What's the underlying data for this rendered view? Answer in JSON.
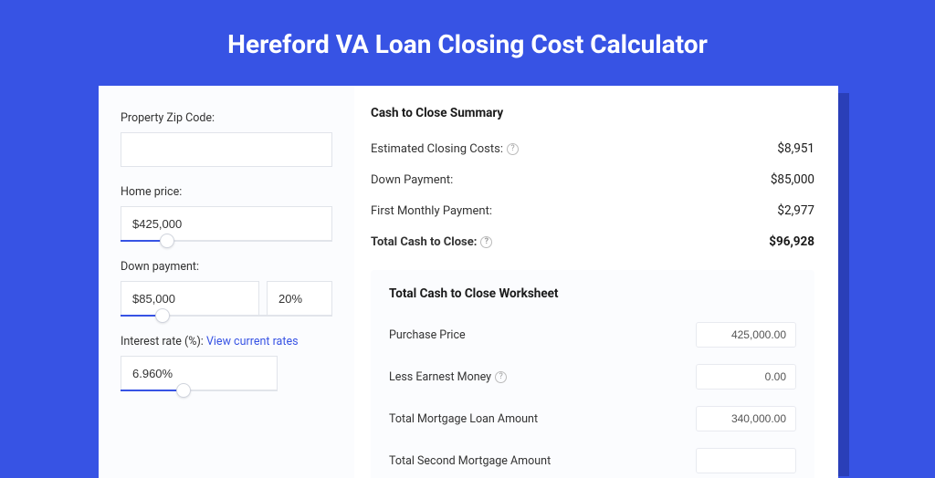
{
  "colors": {
    "page_bg": "#3753e4",
    "card_bg": "#ffffff",
    "panel_bg": "#fbfcfe",
    "shadow_bg": "#2a3fb8",
    "border": "#e1e4ea",
    "slider_fill": "#3753e4",
    "text": "#333333",
    "link": "#3753e4"
  },
  "title": "Hereford VA Loan Closing Cost Calculator",
  "inputs": {
    "zip": {
      "label": "Property Zip Code:",
      "value": ""
    },
    "home_price": {
      "label": "Home price:",
      "value": "$425,000",
      "slider_pct": 22
    },
    "down_payment": {
      "label": "Down payment:",
      "amount": "$85,000",
      "pct": "20%",
      "slider_pct": 20
    },
    "interest_rate": {
      "label": "Interest rate (%): ",
      "link_text": "View current rates",
      "value": "6.960%",
      "slider_pct": 40
    }
  },
  "summary": {
    "title": "Cash to Close Summary",
    "rows": [
      {
        "label": "Estimated Closing Costs:",
        "value": "$8,951",
        "help": true
      },
      {
        "label": "Down Payment:",
        "value": "$85,000",
        "help": false
      },
      {
        "label": "First Monthly Payment:",
        "value": "$2,977",
        "help": false
      }
    ],
    "total": {
      "label": "Total Cash to Close:",
      "value": "$96,928",
      "help": true
    }
  },
  "worksheet": {
    "title": "Total Cash to Close Worksheet",
    "rows": [
      {
        "label": "Purchase Price",
        "value": "425,000.00",
        "help": false
      },
      {
        "label": "Less Earnest Money",
        "value": "0.00",
        "help": true
      },
      {
        "label": "Total Mortgage Loan Amount",
        "value": "340,000.00",
        "help": false
      },
      {
        "label": "Total Second Mortgage Amount",
        "value": "",
        "help": false
      }
    ]
  }
}
